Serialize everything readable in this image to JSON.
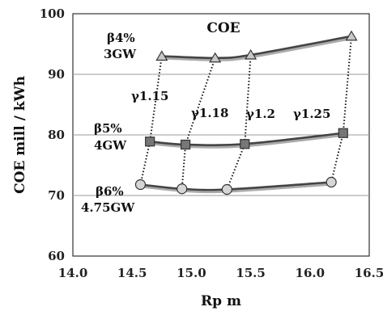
{
  "chart_data": {
    "type": "line",
    "title": "COE",
    "xlabel": "Rp m",
    "ylabel": "COE  mill / kWh",
    "xlim": [
      14.0,
      16.5
    ],
    "ylim": [
      60,
      100
    ],
    "xticks": [
      "14.0",
      "14.5",
      "15.0",
      "15.5",
      "16.0",
      "16.5"
    ],
    "yticks": [
      "60",
      "70",
      "80",
      "90",
      "100"
    ],
    "grid": "horizontal",
    "series": [
      {
        "label_lines": [
          "β4%",
          "3GW"
        ],
        "marker": "triangle",
        "color": "#555555",
        "points": [
          [
            14.75,
            93.0
          ],
          [
            15.2,
            92.7
          ],
          [
            15.5,
            93.2
          ],
          [
            16.35,
            96.3
          ]
        ]
      },
      {
        "label_lines": [
          "β5%",
          "4GW"
        ],
        "marker": "square",
        "color": "#555555",
        "points": [
          [
            14.65,
            78.9
          ],
          [
            14.95,
            78.4
          ],
          [
            15.45,
            78.5
          ],
          [
            16.28,
            80.3
          ]
        ]
      },
      {
        "label_lines": [
          "β6%",
          "4.75GW"
        ],
        "marker": "circle",
        "color": "#555555",
        "points": [
          [
            14.57,
            71.8
          ],
          [
            14.92,
            71.1
          ],
          [
            15.3,
            71.0
          ],
          [
            16.18,
            72.2
          ]
        ]
      }
    ],
    "gamma_lines": [
      {
        "label": "γ1.15",
        "points": [
          [
            14.75,
            93.0
          ],
          [
            14.65,
            78.9
          ],
          [
            14.57,
            71.8
          ]
        ]
      },
      {
        "label": "γ1.18",
        "points": [
          [
            15.2,
            92.7
          ],
          [
            14.95,
            78.4
          ],
          [
            14.92,
            71.1
          ]
        ]
      },
      {
        "label": "γ1.2",
        "points": [
          [
            15.5,
            93.2
          ],
          [
            15.45,
            78.5
          ],
          [
            15.3,
            71.0
          ]
        ]
      },
      {
        "label": "γ1.25",
        "points": [
          [
            16.35,
            96.3
          ],
          [
            16.28,
            80.3
          ],
          [
            16.18,
            72.2
          ]
        ]
      }
    ]
  }
}
